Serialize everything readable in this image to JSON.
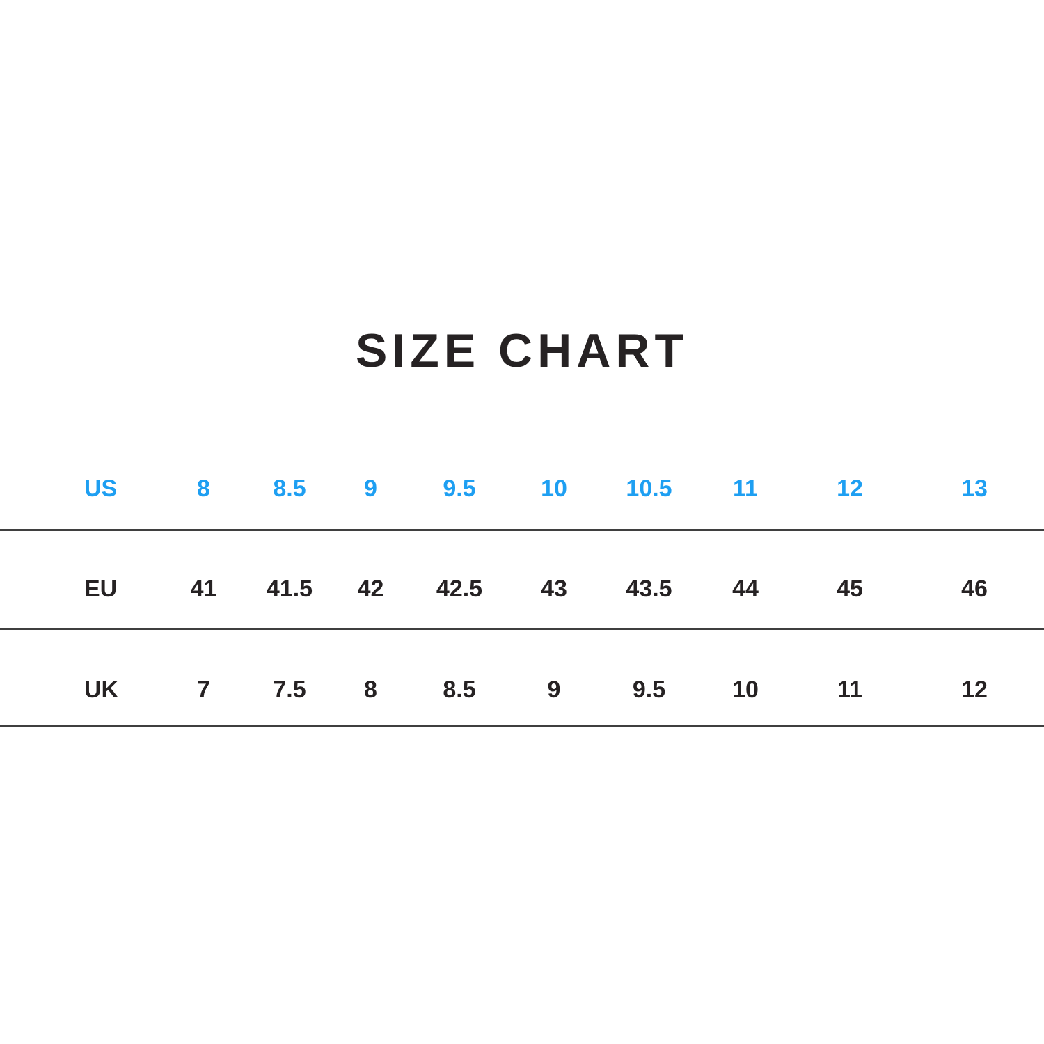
{
  "page": {
    "title": "SIZE CHART",
    "background": "#ffffff"
  },
  "colors": {
    "accent_blue": "#1e9ff2",
    "text_dark": "#262223",
    "divider": "#3f3f3f"
  },
  "chart_data": {
    "type": "table",
    "title": "SIZE CHART",
    "rows": [
      {
        "label": "US",
        "values": [
          "8",
          "8.5",
          "9",
          "9.5",
          "10",
          "10.5",
          "11",
          "12",
          "13"
        ],
        "highlighted": true
      },
      {
        "label": "EU",
        "values": [
          "41",
          "41.5",
          "42",
          "42.5",
          "43",
          "43.5",
          "44",
          "45",
          "46"
        ],
        "highlighted": false
      },
      {
        "label": "UK",
        "values": [
          "7",
          "7.5",
          "8",
          "8.5",
          "9",
          "9.5",
          "10",
          "11",
          "12"
        ],
        "highlighted": false
      }
    ],
    "layout": {
      "highlight_row": "US",
      "highlight_color": "#1e9ff2",
      "row_divider": "full-width horizontal rule under each row",
      "legend_position": "none",
      "grid": "horizontal rules only"
    }
  }
}
